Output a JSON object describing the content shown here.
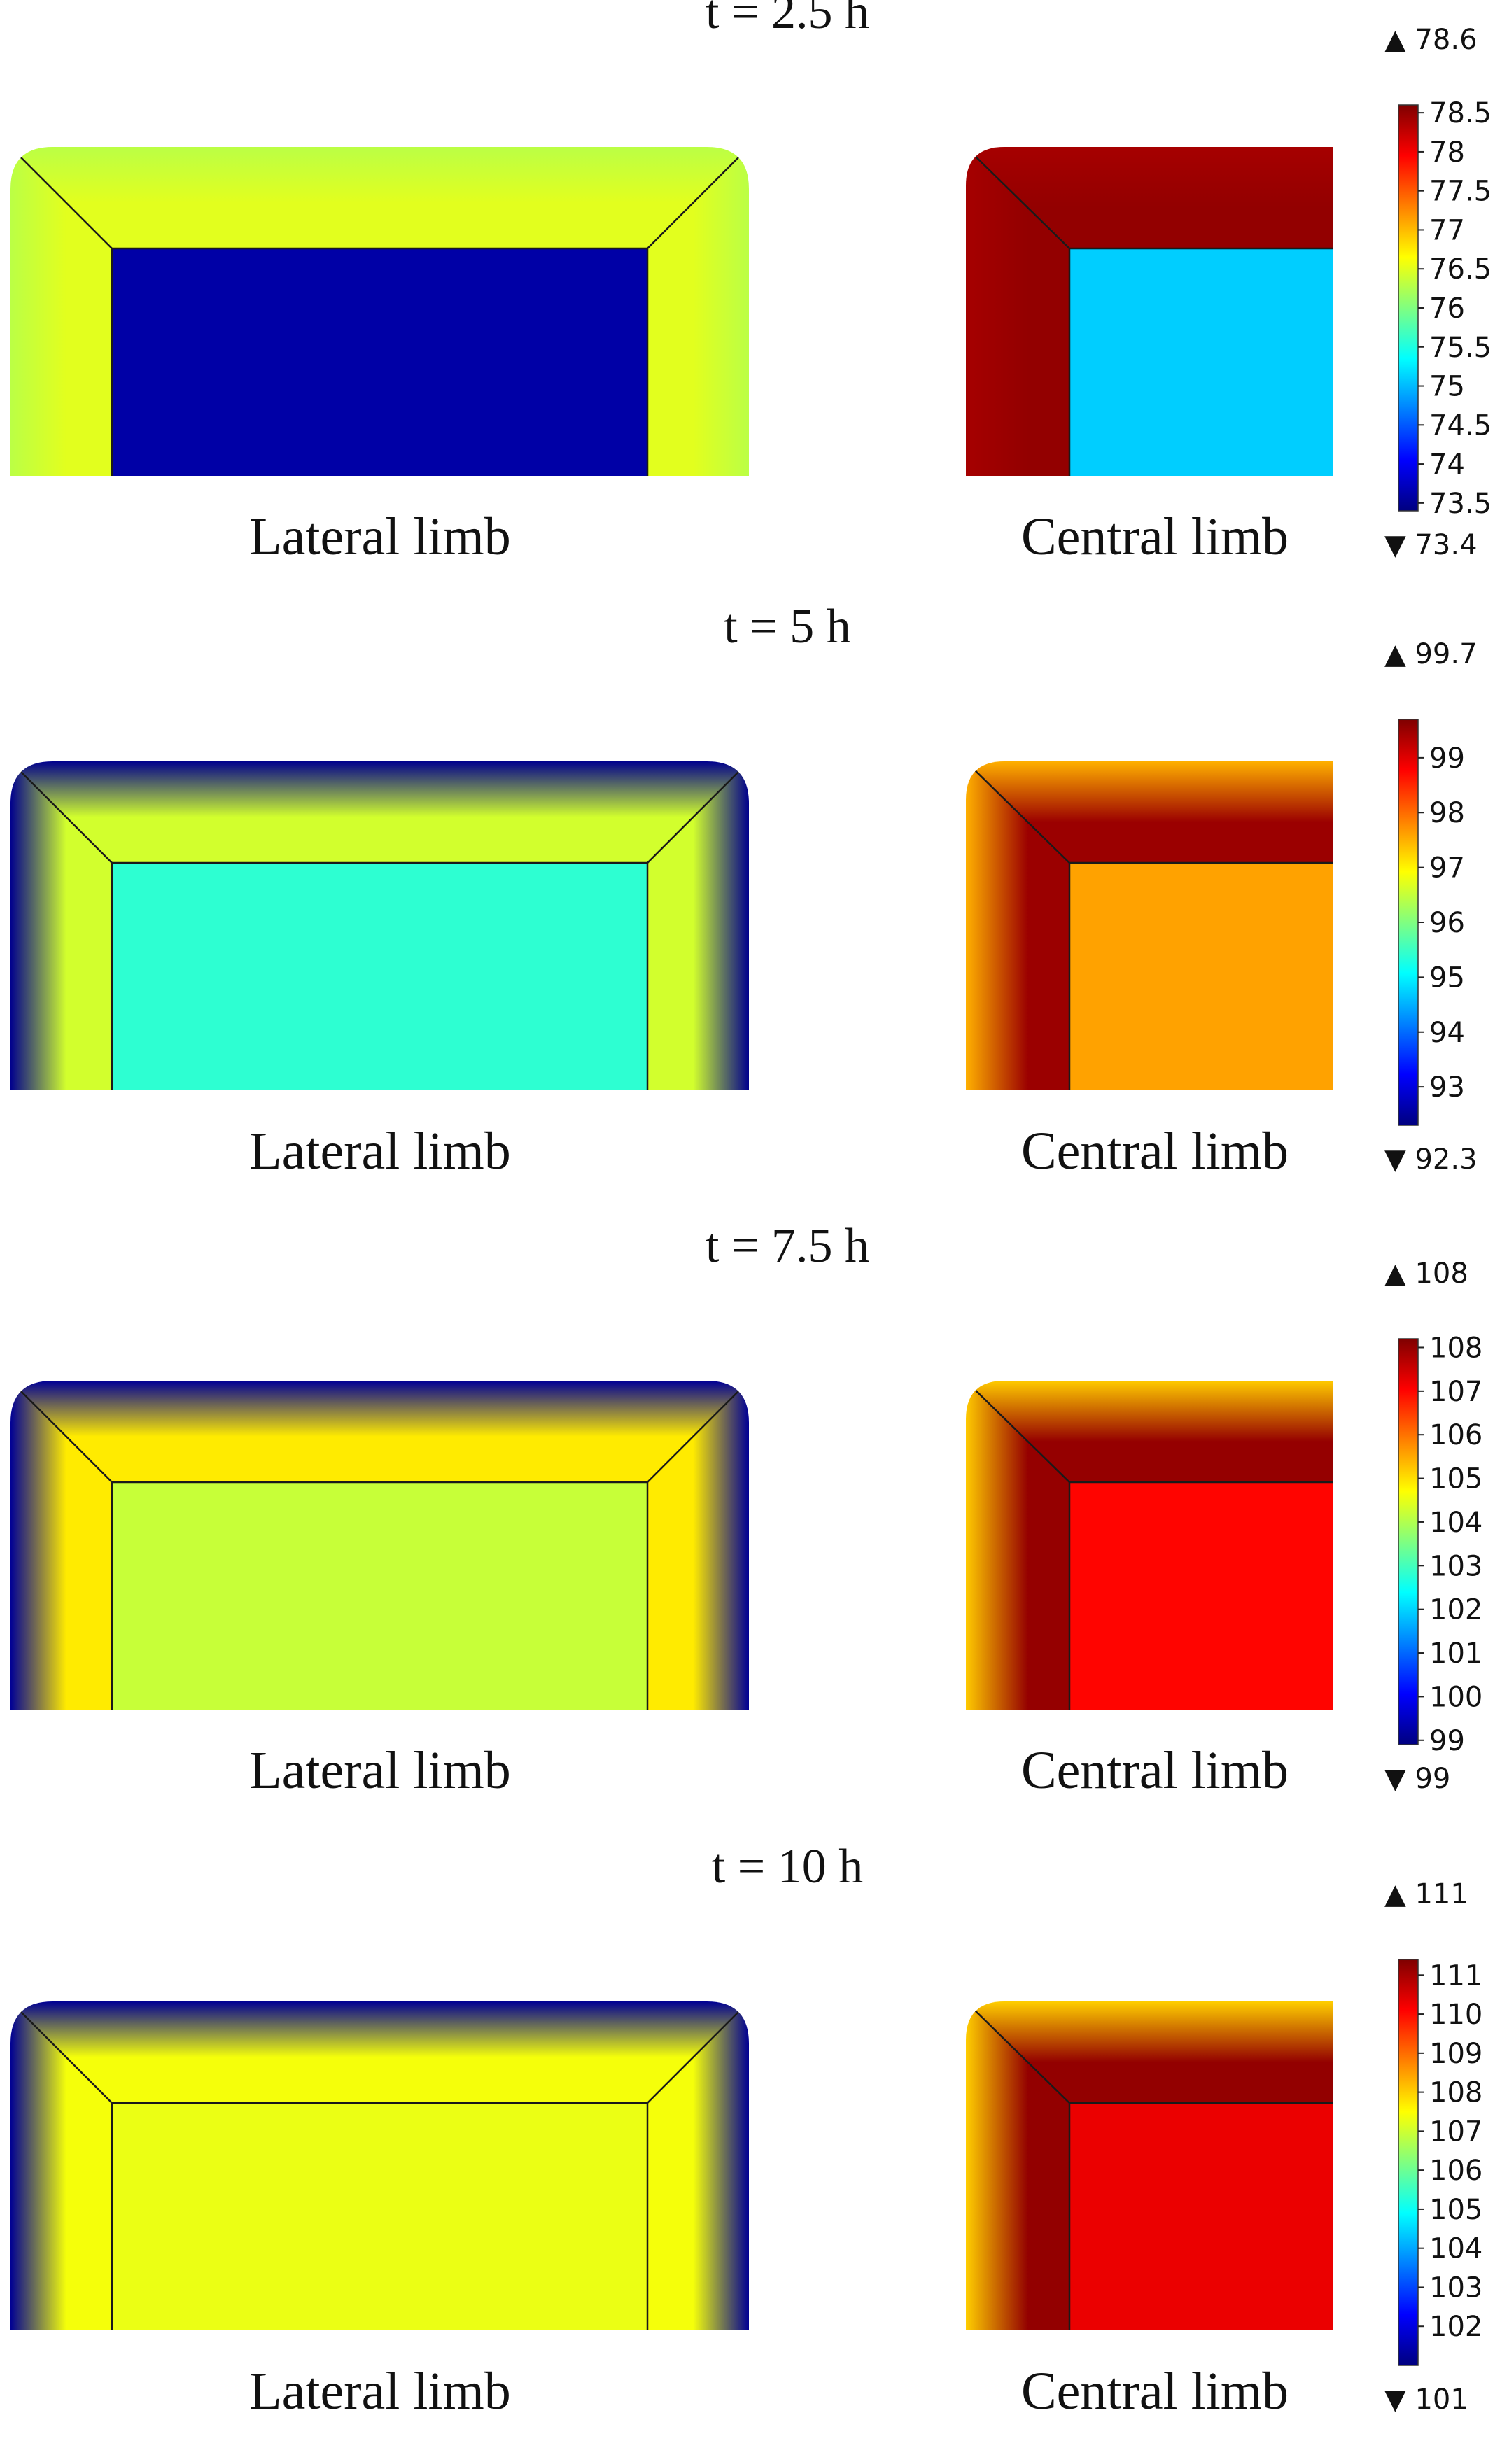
{
  "colormap": [
    "#00007f",
    "#0000ff",
    "#0080ff",
    "#00ffff",
    "#80ff80",
    "#ffff00",
    "#ff8000",
    "#ff0000",
    "#7f0000"
  ],
  "panels": [
    {
      "time_label": "t = 2.5 h",
      "max_label": "▲ 78.6",
      "min_label": "▼ 73.4",
      "lateral_label": "Lateral limb",
      "central_label": "Central limb",
      "range": [
        73.4,
        78.6
      ],
      "ticks": [
        "78.5",
        "78",
        "77.5",
        "77",
        "76.5",
        "76",
        "75.5",
        "75",
        "74.5",
        "74",
        "73.5"
      ],
      "tick_values": [
        78.5,
        78,
        77.5,
        77,
        76.5,
        76,
        75.5,
        75,
        74.5,
        74,
        73.5
      ],
      "lateral": {
        "interior": 73.6,
        "edge": 76.3,
        "mid": 76.5
      },
      "central": {
        "interior": 75.1,
        "edge": 78.4,
        "mid": 78.5
      }
    },
    {
      "time_label": "t = 5 h",
      "max_label": "▲ 99.7",
      "min_label": "▼ 92.3",
      "lateral_label": "Lateral limb",
      "central_label": "Central limb",
      "range": [
        92.3,
        99.7
      ],
      "ticks": [
        "99",
        "98",
        "97",
        "96",
        "95",
        "94",
        "93"
      ],
      "tick_values": [
        99,
        98,
        97,
        96,
        95,
        94,
        93
      ],
      "lateral": {
        "interior": 95.4,
        "edge": 92.4,
        "mid": 96.6
      },
      "central": {
        "interior": 97.6,
        "edge": 97.5,
        "mid": 99.5
      }
    },
    {
      "time_label": "t = 7.5 h",
      "max_label": "▲ 108",
      "min_label": "▼ 99",
      "lateral_label": "Lateral limb",
      "central_label": "Central limb",
      "range": [
        98.9,
        108.2
      ],
      "ticks": [
        "108",
        "107",
        "106",
        "105",
        "104",
        "103",
        "102",
        "101",
        "100",
        "99"
      ],
      "tick_values": [
        108,
        107,
        106,
        105,
        104,
        103,
        102,
        101,
        100,
        99
      ],
      "lateral": {
        "interior": 104.2,
        "edge": 99.1,
        "mid": 104.9
      },
      "central": {
        "interior": 107.0,
        "edge": 105.2,
        "mid": 108.0
      }
    },
    {
      "time_label": "t = 10 h",
      "max_label": "▲ 111",
      "min_label": "▼ 101",
      "lateral_label": "Lateral limb",
      "central_label": "Central limb",
      "range": [
        101.0,
        111.4
      ],
      "ticks": [
        "111",
        "110",
        "109",
        "108",
        "107",
        "106",
        "105",
        "104",
        "103",
        "102"
      ],
      "tick_values": [
        111,
        110,
        109,
        108,
        107,
        106,
        105,
        104,
        103,
        102
      ],
      "lateral": {
        "interior": 107.3,
        "edge": 101.2,
        "mid": 107.4
      },
      "central": {
        "interior": 110.3,
        "edge": 108.0,
        "mid": 111.2
      }
    }
  ]
}
